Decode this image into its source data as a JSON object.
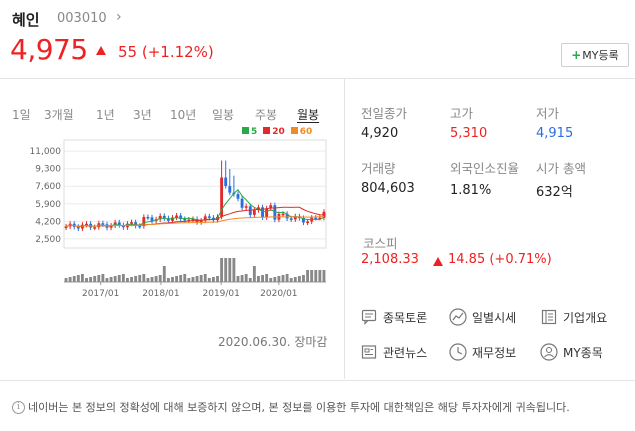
{
  "header": {
    "name": "혜인",
    "code": "003010",
    "code_arrow": "›",
    "price": "4,975",
    "change": "55 (+1.12%)",
    "my_button_plus": "+",
    "my_button_label": "MY등록"
  },
  "tabs": [
    "1일",
    "3개월",
    "1년",
    "3년",
    "10년",
    "일봉",
    "주봉",
    "월봉"
  ],
  "active_tab": "월봉",
  "chart_data": {
    "type": "candlestick",
    "ylim": [
      2000,
      11500
    ],
    "y_ticks": [
      "11,000",
      "9,300",
      "7,600",
      "5,900",
      "4,200",
      "2,500"
    ],
    "x_ticks": [
      "2017/01",
      "2018/01",
      "2019/01",
      "2020/01"
    ],
    "legend": [
      {
        "name": "5",
        "color": "#2aa84a"
      },
      {
        "name": "20",
        "color": "#e22a2a"
      },
      {
        "name": "60",
        "color": "#f08c28"
      }
    ],
    "series": [
      {
        "name": "5",
        "color": "#2aa84a"
      },
      {
        "name": "20",
        "color": "#e22a2a"
      },
      {
        "name": "60",
        "color": "#f08c28"
      }
    ]
  },
  "chart_date": "2020.06.30. 장마감",
  "info": {
    "prev_close_label": "전일종가",
    "prev_close": "4,920",
    "high_label": "고가",
    "high": "5,310",
    "low_label": "저가",
    "low": "4,915",
    "volume_label": "거래량",
    "volume": "804,603",
    "foreign_label": "외국인소진율",
    "foreign": "1.81%",
    "market_cap_label": "시가 총액",
    "market_cap": "632억"
  },
  "kospi": {
    "label": "코스피",
    "value": "2,108.33",
    "change": "14.85 (+0.71%)"
  },
  "links": {
    "discussion": "종목토론",
    "daily": "일별시세",
    "company": "기업개요",
    "news": "관련뉴스",
    "finance": "재무정보",
    "my": "MY종목"
  },
  "footer": "네이버는 본 정보의 정확성에 대해 보증하지 않으며, 본 정보를 이용한 투자에 대한책임은 해당 투자자에게 귀속됩니다.",
  "colors": {
    "up": "#e22a2a",
    "down": "#2a6fe0",
    "accent": "#2aa84a"
  }
}
